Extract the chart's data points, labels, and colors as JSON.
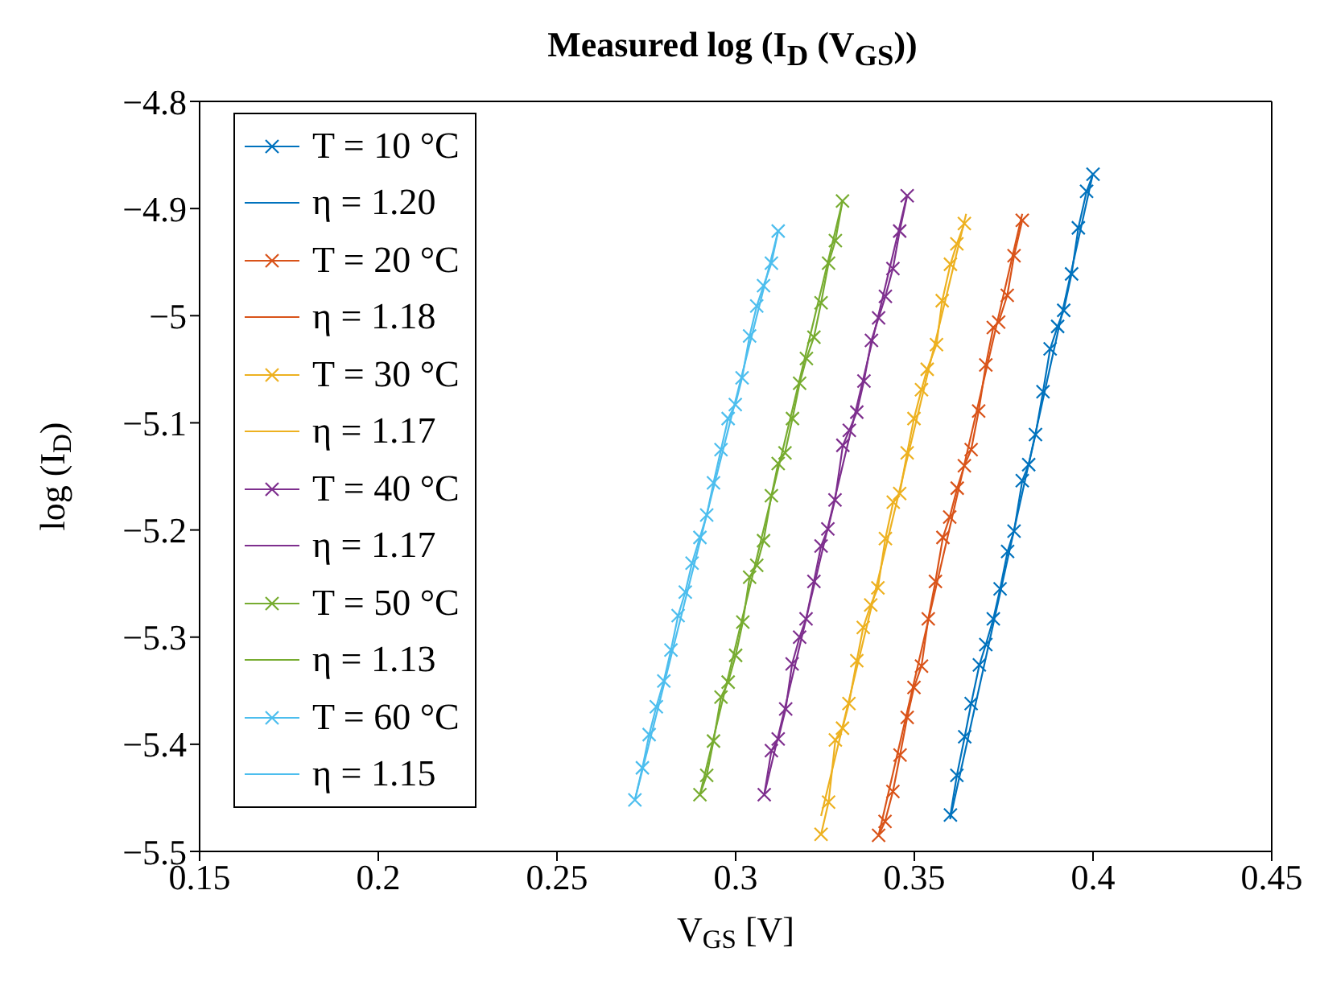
{
  "chart_data": {
    "type": "line",
    "title": "Measured log (I$_{D}$ (V$_{GS}$))",
    "xlabel": "V$_{GS}$  [V]",
    "ylabel": "log (I$_{D}$)",
    "xlim": [
      0.15,
      0.45
    ],
    "xticks": [
      0.15,
      0.2,
      0.25,
      0.3,
      0.35,
      0.4,
      0.45
    ],
    "ylim": [
      -5.5,
      -4.8
    ],
    "yticks": [
      -5.5,
      -5.4,
      -5.3,
      -5.2,
      -5.1,
      -5,
      -4.9,
      -4.8
    ],
    "grid": false,
    "legend": "top left",
    "marker": "cross",
    "line_style": "solid",
    "series": [
      {
        "name": "T = 10 °C",
        "color": "#0072bd",
        "x": [
          0.3601,
          0.3619,
          0.3641,
          0.3659,
          0.3682,
          0.37,
          0.3721,
          0.374,
          0.3761,
          0.3779,
          0.3802,
          0.382,
          0.3839,
          0.386,
          0.388,
          0.3901,
          0.3918,
          0.394,
          0.3959,
          0.3982,
          0.4
        ],
        "values": [
          -5.466,
          -5.429,
          -5.393,
          -5.362,
          -5.326,
          -5.307,
          -5.283,
          -5.255,
          -5.22,
          -5.201,
          -5.154,
          -5.139,
          -5.111,
          -5.071,
          -5.031,
          -5.01,
          -4.995,
          -4.961,
          -4.918,
          -4.884,
          -4.868
        ]
      },
      {
        "name": "η = 1.20",
        "color": "#0072bd",
        "marker": "none",
        "x": [
          0.36,
          0.4
        ],
        "values": [
          -5.47,
          -4.867
        ]
      },
      {
        "name": "T = 20 °C",
        "color": "#d95319",
        "x": [
          0.34,
          0.3418,
          0.344,
          0.346,
          0.348,
          0.3499,
          0.352,
          0.3539,
          0.3559,
          0.358,
          0.3599,
          0.362,
          0.364,
          0.3659,
          0.368,
          0.37,
          0.3721,
          0.3736,
          0.376,
          0.3779,
          0.3802
        ],
        "values": [
          -5.485,
          -5.472,
          -5.444,
          -5.41,
          -5.375,
          -5.347,
          -5.327,
          -5.283,
          -5.248,
          -5.207,
          -5.188,
          -5.161,
          -5.14,
          -5.125,
          -5.089,
          -5.046,
          -5.011,
          -5.006,
          -4.981,
          -4.944,
          -4.911
        ]
      },
      {
        "name": "η = 1.18",
        "color": "#d95319",
        "marker": "none",
        "x": [
          0.34,
          0.3802
        ],
        "values": [
          -5.485,
          -4.905
        ]
      },
      {
        "name": "T = 30 °C",
        "color": "#edb120",
        "x": [
          0.3239,
          0.326,
          0.3279,
          0.3299,
          0.3317,
          0.3339,
          0.3357,
          0.3378,
          0.3398,
          0.3419,
          0.3441,
          0.3459,
          0.348,
          0.3499,
          0.352,
          0.3536,
          0.3562,
          0.3578,
          0.3601,
          0.3619,
          0.364
        ],
        "values": [
          -5.484,
          -5.454,
          -5.396,
          -5.385,
          -5.362,
          -5.322,
          -5.291,
          -5.27,
          -5.254,
          -5.208,
          -5.174,
          -5.166,
          -5.128,
          -5.096,
          -5.069,
          -5.05,
          -5.027,
          -4.986,
          -4.952,
          -4.933,
          -4.914
        ]
      },
      {
        "name": "η = 1.17",
        "color": "#edb120",
        "marker": "none",
        "x": [
          0.3239,
          0.3645
        ],
        "values": [
          -5.467,
          -4.905
        ]
      },
      {
        "name": "T = 40 °C",
        "color": "#7e2f8e",
        "x": [
          0.308,
          0.31,
          0.3119,
          0.314,
          0.3158,
          0.3179,
          0.3197,
          0.3219,
          0.3239,
          0.3258,
          0.3278,
          0.33,
          0.3318,
          0.3339,
          0.3359,
          0.338,
          0.34,
          0.3419,
          0.344,
          0.3459,
          0.348
        ],
        "values": [
          -5.447,
          -5.406,
          -5.395,
          -5.367,
          -5.325,
          -5.3,
          -5.283,
          -5.248,
          -5.215,
          -5.199,
          -5.172,
          -5.121,
          -5.107,
          -5.09,
          -5.061,
          -5.023,
          -5.002,
          -4.982,
          -4.956,
          -4.921,
          -4.888
        ]
      },
      {
        "name": "η = 1.17",
        "color": "#7e2f8e",
        "marker": "none",
        "x": [
          0.308,
          0.348
        ],
        "values": [
          -5.447,
          -4.887
        ]
      },
      {
        "name": "T = 50 °C",
        "color": "#77ac30",
        "x": [
          0.29,
          0.2919,
          0.2938,
          0.2959,
          0.2979,
          0.3,
          0.302,
          0.3039,
          0.3059,
          0.3078,
          0.31,
          0.3119,
          0.3138,
          0.3159,
          0.3179,
          0.3198,
          0.3219,
          0.3239,
          0.326,
          0.3279,
          0.3299
        ],
        "values": [
          -5.447,
          -5.429,
          -5.397,
          -5.356,
          -5.342,
          -5.317,
          -5.286,
          -5.244,
          -5.233,
          -5.21,
          -5.168,
          -5.138,
          -5.128,
          -5.096,
          -5.063,
          -5.04,
          -5.02,
          -4.988,
          -4.951,
          -4.93,
          -4.893
        ]
      },
      {
        "name": "η = 1.13",
        "color": "#77ac30",
        "marker": "none",
        "x": [
          0.29,
          0.3299
        ],
        "values": [
          -5.447,
          -4.893
        ]
      },
      {
        "name": "T = 60 °C",
        "color": "#4dbeee",
        "x": [
          0.2718,
          0.2739,
          0.2758,
          0.2778,
          0.2799,
          0.2819,
          0.2839,
          0.2859,
          0.2878,
          0.29,
          0.2919,
          0.2938,
          0.2959,
          0.2979,
          0.2999,
          0.3018,
          0.3039,
          0.3059,
          0.3078,
          0.31,
          0.3119
        ],
        "values": [
          -5.452,
          -5.422,
          -5.391,
          -5.365,
          -5.341,
          -5.312,
          -5.28,
          -5.258,
          -5.231,
          -5.207,
          -5.186,
          -5.156,
          -5.125,
          -5.096,
          -5.083,
          -5.058,
          -5.019,
          -4.991,
          -4.972,
          -4.951,
          -4.921
        ]
      },
      {
        "name": "η = 1.15",
        "color": "#4dbeee",
        "marker": "none",
        "x": [
          0.2718,
          0.3119
        ],
        "values": [
          -5.452,
          -4.921
        ]
      }
    ]
  }
}
